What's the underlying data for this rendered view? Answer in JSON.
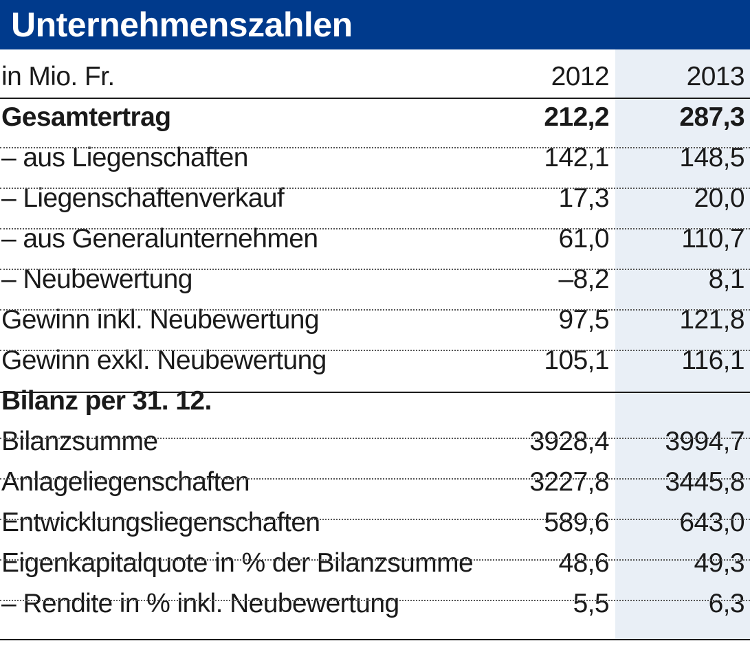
{
  "title": "Unternehmenszahlen",
  "header": {
    "unit": "in Mio. Fr.",
    "year1": "2012",
    "year2": "2013"
  },
  "rows": [
    {
      "label": "Gesamtertrag",
      "v2012": "212,2",
      "v2013": "287,3"
    },
    {
      "label": "– aus Liegenschaften",
      "v2012": "142,1",
      "v2013": "148,5"
    },
    {
      "label": "– Liegenschaftenverkauf",
      "v2012": "17,3",
      "v2013": "20,0"
    },
    {
      "label": "– aus Generalunternehmen",
      "v2012": "61,0",
      "v2013": "110,7"
    },
    {
      "label": "– Neubewertung",
      "v2012": "–8,2",
      "v2013": "8,1"
    },
    {
      "label": "Gewinn inkl. Neubewertung",
      "v2012": "97,5",
      "v2013": "121,8"
    },
    {
      "label": "Gewinn exkl. Neubewertung",
      "v2012": "105,1",
      "v2013": "116,1"
    },
    {
      "label": "Bilanz per 31. 12.",
      "v2012": "",
      "v2013": ""
    },
    {
      "label": "Bilanzsumme",
      "v2012": "3928,4",
      "v2013": "3994,7"
    },
    {
      "label": "Anlageliegenschaften",
      "v2012": "3227,8",
      "v2013": "3445,8"
    },
    {
      "label": "Entwicklungsliegenschaften",
      "v2012": "589,6",
      "v2013": "643,0"
    },
    {
      "label": "Eigenkapitalquote in % der Bilanzsumme",
      "v2012": "48,6",
      "v2013": "49,3"
    },
    {
      "label": "– Rendite in % inkl. Neubewertung",
      "v2012": "5,5",
      "v2013": "6,3"
    }
  ],
  "colors": {
    "title_bg": "#003a8c",
    "title_text": "#ffffff",
    "highlight_col": "#e9eff6"
  }
}
